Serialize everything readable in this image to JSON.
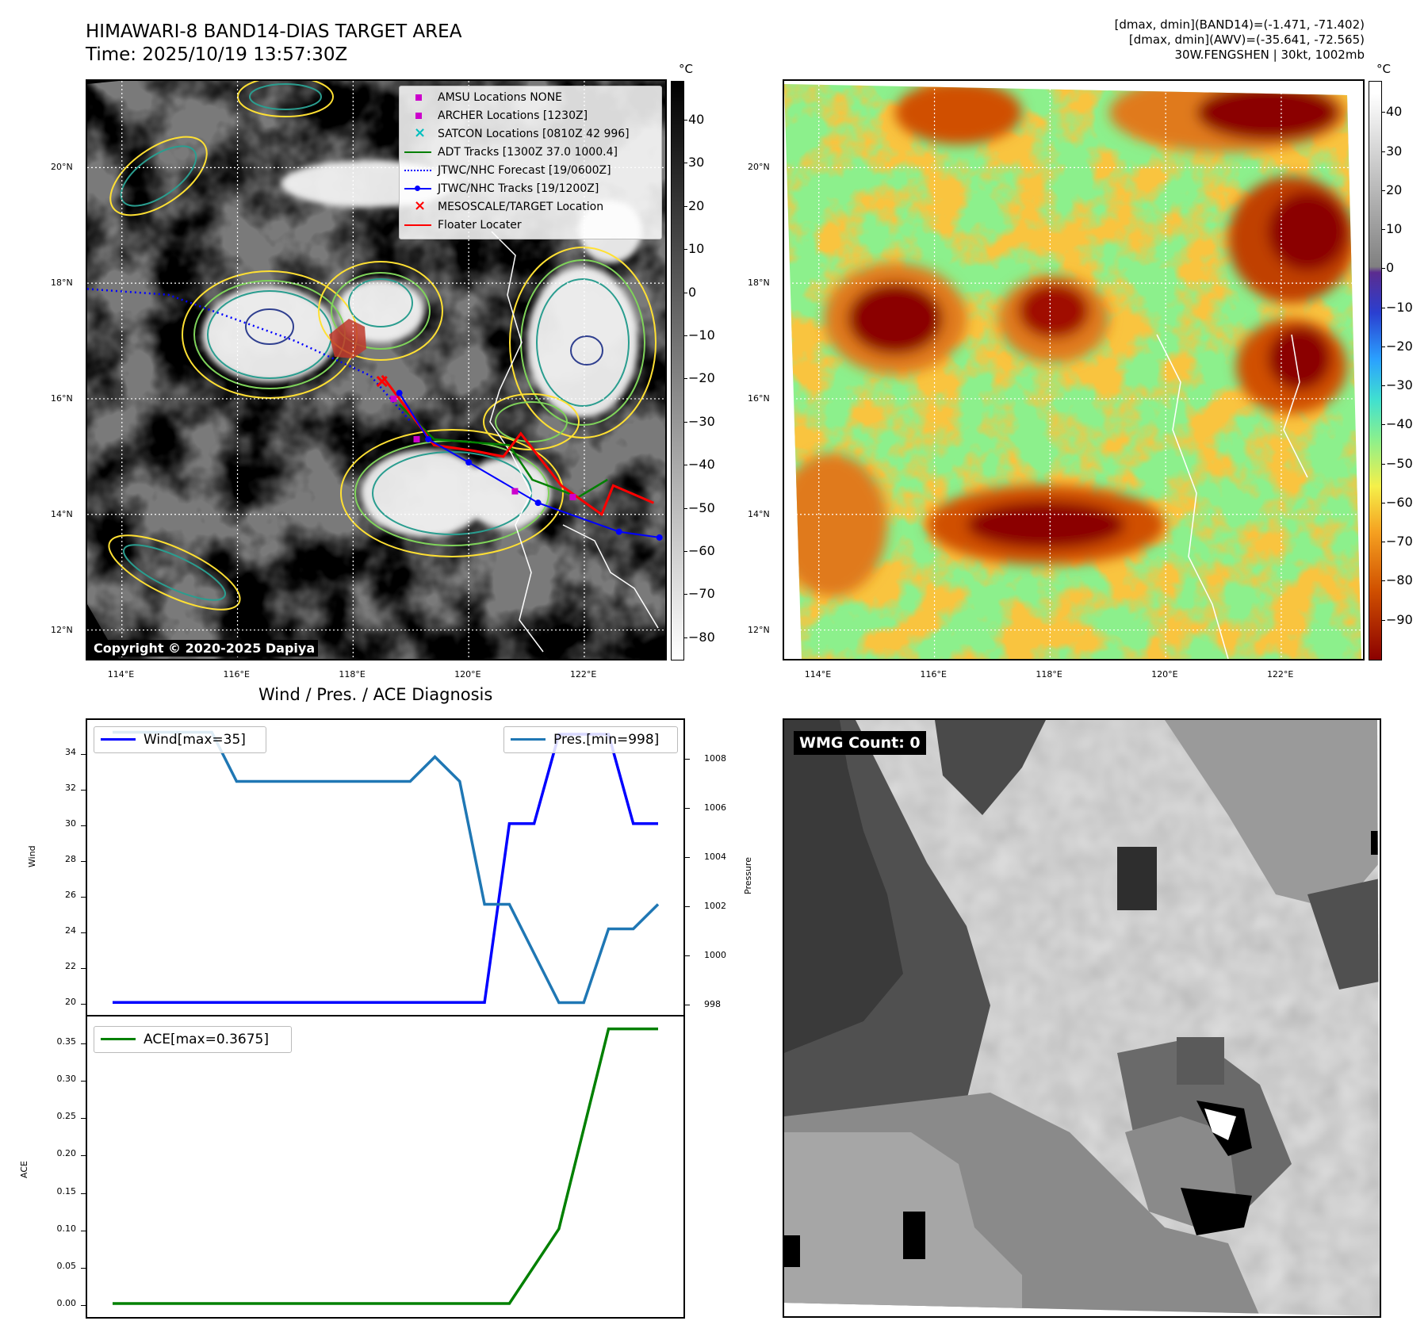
{
  "header": {
    "title_line1": "HIMAWARI-8 BAND14-DIAS TARGET AREA",
    "title_line2": "Time: 2025/10/19 13:57:30Z",
    "info_line1": "[dmax, dmin](BAND14)=(-1.471, -71.402)",
    "info_line2": "[dmax, dmin](AWV)=(-35.641, -72.565)",
    "info_line3": "30W.FENGSHEN | 30kt, 1002mb"
  },
  "colors": {
    "wind": "#0000ff",
    "pressure": "#1f77b4",
    "ace": "#008000",
    "adt": "#008000",
    "jtwc": "#0000ff",
    "floater": "#ff0000",
    "archer": "#cc00cc",
    "satcon": "#00bfbf",
    "contour_yellow": "#ffe033",
    "contour_green": "#7fd35a",
    "contour_teal": "#2a9d8f",
    "contour_navy": "#2f3f8f"
  },
  "map": {
    "lon_labels": [
      "114°E",
      "116°E",
      "118°E",
      "120°E",
      "122°E"
    ],
    "lat_labels": [
      "20°N",
      "18°N",
      "16°N",
      "14°N",
      "12°N"
    ],
    "copyright": "Copyright © 2020-2025 Dapiya",
    "legend": [
      {
        "label": "AMSU Locations NONE",
        "marker": "square",
        "color": "#cc00cc"
      },
      {
        "label": "ARCHER Locations [1230Z]",
        "marker": "square",
        "color": "#cc00cc"
      },
      {
        "label": "SATCON Locations [0810Z 42 996]",
        "marker": "x",
        "color": "#00bfbf"
      },
      {
        "label": "ADT Tracks [1300Z 37.0 1000.4]",
        "marker": "line",
        "color": "#008000"
      },
      {
        "label": "JTWC/NHC Forecast [19/0600Z]",
        "marker": "dotted",
        "color": "#0000ff"
      },
      {
        "label": "JTWC/NHC Tracks [19/1200Z]",
        "marker": "dotline",
        "color": "#0000ff"
      },
      {
        "label": "MESOSCALE/TARGET Location",
        "marker": "x",
        "color": "#ff0000"
      },
      {
        "label": "Floater Locater",
        "marker": "line",
        "color": "#ff0000"
      }
    ],
    "colorbar_unit": "°C",
    "colorbar1_ticks": [
      "40",
      "30",
      "20",
      "10",
      "0",
      "−10",
      "−20",
      "−30",
      "−40",
      "−50",
      "−60",
      "−70",
      "−80"
    ],
    "colorbar2_ticks": [
      "40",
      "30",
      "20",
      "10",
      "0",
      "−10",
      "−20",
      "−30",
      "−40",
      "−50",
      "−60",
      "−70",
      "−80",
      "−90"
    ],
    "jtwc_track": [
      [
        118.8,
        16.1
      ],
      [
        119.3,
        15.3
      ],
      [
        120.0,
        14.9
      ],
      [
        121.2,
        14.2
      ],
      [
        122.6,
        13.7
      ],
      [
        123.3,
        13.6
      ]
    ],
    "jtwc_forecast": [
      [
        113.4,
        17.9
      ],
      [
        114.8,
        17.8
      ],
      [
        117.0,
        17.0
      ],
      [
        118.3,
        16.4
      ],
      [
        119.0,
        15.6
      ]
    ],
    "adt_track": [
      [
        118.8,
        15.9
      ],
      [
        119.4,
        15.3
      ],
      [
        120.7,
        15.2
      ],
      [
        121.1,
        14.6
      ],
      [
        121.9,
        14.3
      ],
      [
        122.4,
        14.6
      ]
    ],
    "floater_track": [
      [
        118.5,
        16.4
      ],
      [
        119.4,
        15.2
      ],
      [
        120.1,
        15.1
      ],
      [
        120.6,
        15.0
      ],
      [
        120.9,
        15.4
      ],
      [
        121.6,
        14.5
      ],
      [
        122.3,
        14.0
      ],
      [
        122.5,
        14.5
      ],
      [
        123.2,
        14.2
      ]
    ],
    "archer_points": [
      [
        118.7,
        16.0
      ],
      [
        119.1,
        15.3
      ],
      [
        120.8,
        14.4
      ],
      [
        121.8,
        14.3
      ]
    ],
    "target_location": [
      118.5,
      16.3
    ]
  },
  "chart_data": [
    {
      "type": "line",
      "title": "Wind / Pres. / ACE Diagnosis",
      "xlim": [
        0,
        22
      ],
      "ylabel": "Wind",
      "ylim": [
        19.3,
        35.8
      ],
      "yticks": [
        "20",
        "22",
        "24",
        "26",
        "28",
        "30",
        "32",
        "34"
      ],
      "y2label": "Pressure",
      "y2lim": [
        997.5,
        1009.5
      ],
      "y2ticks": [
        "998",
        "1000",
        "1002",
        "1004",
        "1006",
        "1008"
      ],
      "series": [
        {
          "name": "Wind[max=35]",
          "axis": "left",
          "x": [
            0,
            1,
            2,
            3,
            4,
            5,
            6,
            7,
            8,
            9,
            10,
            11,
            12,
            13,
            14,
            15,
            16,
            17,
            18,
            19,
            20,
            21,
            22
          ],
          "values": [
            20,
            20,
            20,
            20,
            20,
            20,
            20,
            20,
            20,
            20,
            20,
            20,
            20,
            20,
            20,
            20,
            30,
            30,
            35,
            35,
            35,
            30,
            30
          ]
        },
        {
          "name": "Pres.[min=998]",
          "axis": "right",
          "x": [
            0,
            1,
            2,
            3,
            4,
            5,
            6,
            7,
            8,
            9,
            10,
            11,
            12,
            13,
            14,
            15,
            16,
            17,
            18,
            19,
            20,
            21,
            22
          ],
          "values": [
            1009,
            1009,
            1009,
            1009,
            1009,
            1007,
            1007,
            1007,
            1007,
            1007,
            1007,
            1007,
            1007,
            1008,
            1007,
            1002,
            1002,
            1000,
            998,
            998,
            1001,
            1001,
            1002
          ]
        }
      ]
    },
    {
      "type": "line",
      "xlim": [
        0,
        22
      ],
      "ylabel": "ACE",
      "ylim": [
        -0.018,
        0.384
      ],
      "yticks": [
        "0.00",
        "0.05",
        "0.10",
        "0.15",
        "0.20",
        "0.25",
        "0.30",
        "0.35"
      ],
      "series": [
        {
          "name": "ACE[max=0.3675]",
          "x": [
            0,
            16,
            18,
            20,
            22
          ],
          "values": [
            0,
            0,
            0.1,
            0.3675,
            0.3675
          ]
        }
      ]
    }
  ],
  "wmg_label": "WMG Count: 0"
}
